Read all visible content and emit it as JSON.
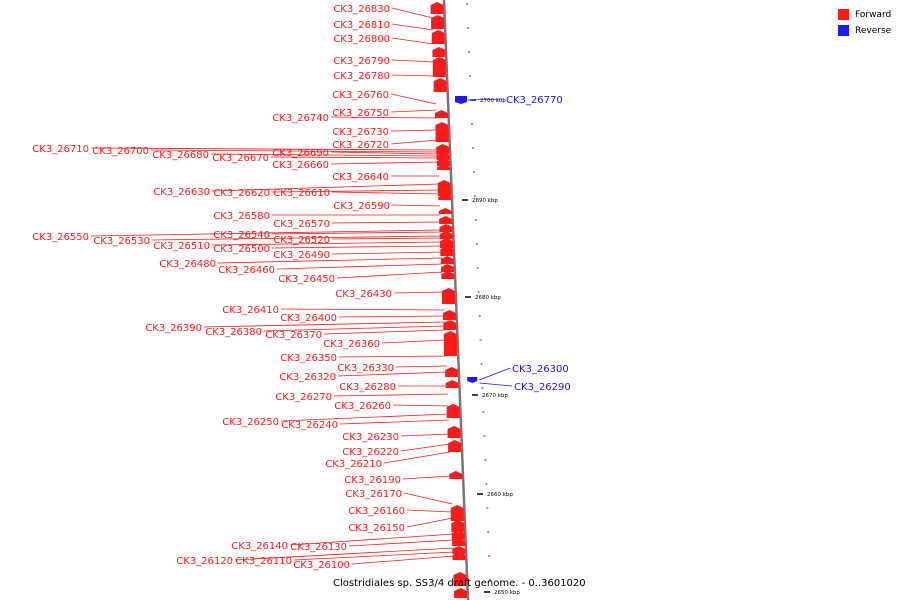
{
  "legend": {
    "forward_label": "Forward",
    "reverse_label": "Reverse",
    "forward_color": "#ff1a1a",
    "reverse_color": "#1a1aff"
  },
  "caption": "Clostridiales sp. SS3/4 draft genome. - 0..3601020",
  "ruler": {
    "ticks": [
      "2700 kbp",
      "2690 kbp",
      "2680 kbp",
      "2670 kbp",
      "2660 kbp",
      "2650 kbp"
    ]
  },
  "forward_genes": [
    "CK3_26830",
    "CK3_26810",
    "CK3_26800",
    "CK3_26790",
    "CK3_26780",
    "CK3_26760",
    "CK3_26750",
    "CK3_26740",
    "CK3_26730",
    "CK3_26720",
    "CK3_26710",
    "CK3_26700",
    "CK3_26690",
    "CK3_26680",
    "CK3_26670",
    "CK3_26660",
    "CK3_26640",
    "CK3_26630",
    "CK3_26620",
    "CK3_26610",
    "CK3_26590",
    "CK3_26580",
    "CK3_26570",
    "CK3_26550",
    "CK3_26540",
    "CK3_26530",
    "CK3_26520",
    "CK3_26510",
    "CK3_26500",
    "CK3_26490",
    "CK3_26480",
    "CK3_26460",
    "CK3_26450",
    "CK3_26430",
    "CK3_26410",
    "CK3_26400",
    "CK3_26390",
    "CK3_26380",
    "CK3_26370",
    "CK3_26360",
    "CK3_26350",
    "CK3_26330",
    "CK3_26320",
    "CK3_26280",
    "CK3_26270",
    "CK3_26260",
    "CK3_26250",
    "CK3_26240",
    "CK3_26230",
    "CK3_26220",
    "CK3_26210",
    "CK3_26190",
    "CK3_26170",
    "CK3_26160",
    "CK3_26150",
    "CK3_26140",
    "CK3_26130",
    "CK3_26120",
    "CK3_26110",
    "CK3_26100"
  ],
  "reverse_genes": [
    "CK3_26770",
    "CK3_26300",
    "CK3_26290"
  ]
}
